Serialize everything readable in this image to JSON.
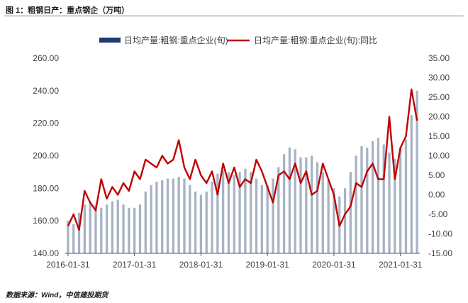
{
  "figure_title": "图 1：粗钢日产：重点钢企（万吨）",
  "source": "数据来源：Wind，中信建投期货",
  "colors": {
    "bars": "#a7b3c4",
    "legend_bar": "#1f3a6e",
    "line": "#c00000",
    "axis": "#595959"
  },
  "chart_data": {
    "type": "bar+line",
    "x_tick_labels": [
      "2016-01-31",
      "2017-01-31",
      "2018-01-31",
      "2019-01-31",
      "2020-01-31",
      "2021-01-31"
    ],
    "x_start": "2016-01",
    "x_end": "2021-04",
    "legend_position": "top-center",
    "left_axis": {
      "range": [
        140,
        260
      ],
      "ticks": [
        "140.00",
        "160.00",
        "180.00",
        "200.00",
        "220.00",
        "240.00",
        "260.00"
      ]
    },
    "right_axis": {
      "range": [
        -15,
        35
      ],
      "ticks": [
        "-15.00",
        "-10.00",
        "-5.00",
        "0.00",
        "5.00",
        "10.00",
        "15.00",
        "20.00",
        "25.00",
        "30.00",
        "35.00"
      ]
    },
    "series": [
      {
        "name": "日均产量:粗钢:重点企业(旬)",
        "type": "bar",
        "axis": "left",
        "x": [
          "2016-01",
          "2016-02",
          "2016-03",
          "2016-04",
          "2016-05",
          "2016-06",
          "2016-07",
          "2016-08",
          "2016-09",
          "2016-10",
          "2016-11",
          "2016-12",
          "2017-01",
          "2017-02",
          "2017-03",
          "2017-04",
          "2017-05",
          "2017-06",
          "2017-07",
          "2017-08",
          "2017-09",
          "2017-10",
          "2017-11",
          "2017-12",
          "2018-01",
          "2018-02",
          "2018-03",
          "2018-04",
          "2018-05",
          "2018-06",
          "2018-07",
          "2018-08",
          "2018-09",
          "2018-10",
          "2018-11",
          "2018-12",
          "2019-01",
          "2019-02",
          "2019-03",
          "2019-04",
          "2019-05",
          "2019-06",
          "2019-07",
          "2019-08",
          "2019-09",
          "2019-10",
          "2019-11",
          "2019-12",
          "2020-01",
          "2020-02",
          "2020-03",
          "2020-04",
          "2020-05",
          "2020-06",
          "2020-07",
          "2020-08",
          "2020-09",
          "2020-10",
          "2020-11",
          "2020-12",
          "2021-01",
          "2021-02",
          "2021-03",
          "2021-04"
        ],
        "values": [
          160,
          158,
          165,
          170,
          172,
          170,
          168,
          170,
          172,
          173,
          170,
          168,
          168,
          170,
          178,
          182,
          184,
          185,
          186,
          186,
          187,
          186,
          182,
          178,
          176,
          178,
          184,
          189,
          191,
          190,
          188,
          190,
          192,
          190,
          186,
          182,
          182,
          186,
          193,
          201,
          205,
          204,
          199,
          199,
          200,
          196,
          190,
          185,
          180,
          175,
          180,
          190,
          200,
          206,
          205,
          209,
          211,
          207,
          202,
          198,
          205,
          210,
          225,
          240
        ]
      },
      {
        "name": "日均产量:粗钢:重点企业(旬):同比",
        "type": "line",
        "axis": "right",
        "x": [
          "2016-01",
          "2016-02",
          "2016-03",
          "2016-04",
          "2016-05",
          "2016-06",
          "2016-07",
          "2016-08",
          "2016-09",
          "2016-10",
          "2016-11",
          "2016-12",
          "2017-01",
          "2017-02",
          "2017-03",
          "2017-04",
          "2017-05",
          "2017-06",
          "2017-07",
          "2017-08",
          "2017-09",
          "2017-10",
          "2017-11",
          "2017-12",
          "2018-01",
          "2018-02",
          "2018-03",
          "2018-04",
          "2018-05",
          "2018-06",
          "2018-07",
          "2018-08",
          "2018-09",
          "2018-10",
          "2018-11",
          "2018-12",
          "2019-01",
          "2019-02",
          "2019-03",
          "2019-04",
          "2019-05",
          "2019-06",
          "2019-07",
          "2019-08",
          "2019-09",
          "2019-10",
          "2019-11",
          "2019-12",
          "2020-01",
          "2020-02",
          "2020-03",
          "2020-04",
          "2020-05",
          "2020-06",
          "2020-07",
          "2020-08",
          "2020-09",
          "2020-10",
          "2020-11",
          "2020-12",
          "2021-01",
          "2021-02",
          "2021-03",
          "2021-04"
        ],
        "values": [
          -8,
          -5,
          -9,
          1,
          -2,
          -4,
          4,
          -1,
          2,
          0,
          3,
          1,
          6,
          4,
          9,
          8,
          7,
          10,
          8,
          9,
          14,
          7,
          4,
          9,
          5,
          3,
          6,
          0,
          8,
          3,
          7,
          2,
          4,
          3,
          9,
          6,
          2,
          -2,
          5,
          6,
          4,
          8,
          3,
          6,
          0,
          1,
          8,
          4,
          0,
          -8,
          -5,
          -3,
          3,
          2,
          6,
          8,
          4,
          4,
          20,
          4,
          12,
          15,
          27,
          19
        ]
      }
    ]
  }
}
